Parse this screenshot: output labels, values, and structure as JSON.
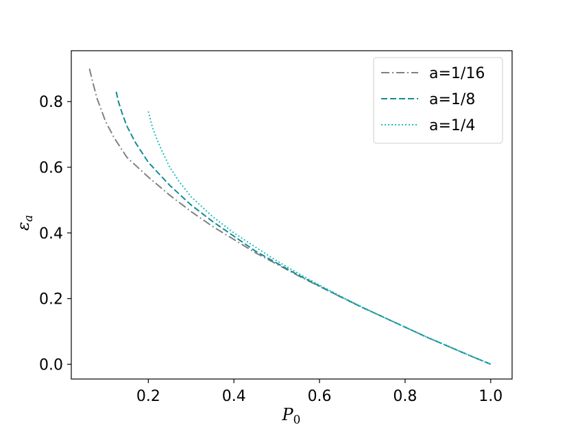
{
  "chart_data": {
    "type": "line",
    "title": "",
    "xlabel": "P",
    "xlabel_sub": "0",
    "ylabel": "ε",
    "ylabel_sub": "a",
    "xlim": [
      0.02,
      1.05
    ],
    "ylim": [
      -0.045,
      0.955
    ],
    "xticks": [
      0.2,
      0.4,
      0.6,
      0.8,
      1.0
    ],
    "xtick_labels": [
      "0.2",
      "0.4",
      "0.6",
      "0.8",
      "1.0"
    ],
    "yticks": [
      0.0,
      0.2,
      0.4,
      0.6,
      0.8
    ],
    "ytick_labels": [
      "0.0",
      "0.2",
      "0.4",
      "0.6",
      "0.8"
    ],
    "grid": false,
    "legend_position": "top-right",
    "series": [
      {
        "name": "a=1/16",
        "color": "#808080",
        "dash": "dashdot",
        "x": [
          0.0625,
          0.07,
          0.08,
          0.1,
          0.12,
          0.15,
          0.2,
          0.25,
          0.3,
          0.35,
          0.4,
          0.45,
          0.5,
          0.55,
          0.6,
          0.65,
          0.7,
          0.75,
          0.8,
          0.85,
          0.9,
          0.95,
          1.0
        ],
        "y": [
          0.9,
          0.86,
          0.81,
          0.74,
          0.69,
          0.63,
          0.57,
          0.515,
          0.465,
          0.42,
          0.38,
          0.34,
          0.305,
          0.27,
          0.237,
          0.205,
          0.173,
          0.143,
          0.113,
          0.083,
          0.055,
          0.027,
          0.0
        ]
      },
      {
        "name": "a=1/8",
        "color": "#108a94",
        "dash": "dashed",
        "x": [
          0.125,
          0.13,
          0.14,
          0.15,
          0.17,
          0.2,
          0.25,
          0.3,
          0.35,
          0.4,
          0.45,
          0.5,
          0.55,
          0.6,
          0.65,
          0.7,
          0.75,
          0.8,
          0.85,
          0.9,
          0.95,
          1.0
        ],
        "y": [
          0.83,
          0.8,
          0.76,
          0.725,
          0.675,
          0.615,
          0.545,
          0.485,
          0.435,
          0.39,
          0.345,
          0.308,
          0.272,
          0.238,
          0.205,
          0.173,
          0.143,
          0.113,
          0.083,
          0.055,
          0.027,
          0.0
        ]
      },
      {
        "name": "a=1/4",
        "color": "#17bfbf",
        "dash": "dotted",
        "x": [
          0.2,
          0.21,
          0.22,
          0.23,
          0.25,
          0.27,
          0.3,
          0.35,
          0.4,
          0.45,
          0.5,
          0.55,
          0.6,
          0.65,
          0.7,
          0.75,
          0.8,
          0.85,
          0.9,
          0.95,
          1.0
        ],
        "y": [
          0.77,
          0.72,
          0.685,
          0.655,
          0.6,
          0.56,
          0.51,
          0.45,
          0.4,
          0.357,
          0.315,
          0.277,
          0.241,
          0.207,
          0.174,
          0.143,
          0.113,
          0.083,
          0.055,
          0.027,
          0.0
        ]
      }
    ]
  }
}
